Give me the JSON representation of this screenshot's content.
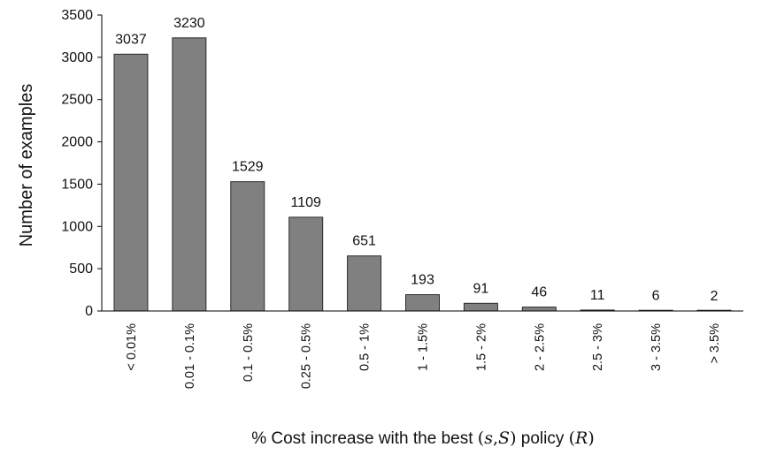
{
  "chart_data": {
    "type": "bar",
    "title": "",
    "ylabel": "Number of examples",
    "xlabel": {
      "prefix": "% Cost increase with the best ",
      "math_open": "(",
      "math_s": "s",
      "math_comma": ",",
      "math_S": "S",
      "math_close": ")",
      "middle": " policy ",
      "math_R_open": "(",
      "math_R": "R",
      "math_R_close": ")"
    },
    "ylim": [
      0,
      3500
    ],
    "yticks": [
      "0",
      "500",
      "1000",
      "1500",
      "2000",
      "2500",
      "3000",
      "3500"
    ],
    "categories": [
      "< 0.01%",
      "0.01 - 0.1%",
      "0.1 - 0.5%",
      "0.25 - 0.5%",
      "0.5 - 1%",
      "1 - 1.5%",
      "1.5 - 2%",
      "2 - 2.5%",
      "2.5 - 3%",
      "3 - 3.5%",
      "> 3.5%"
    ],
    "values": [
      3037,
      3230,
      1529,
      1109,
      651,
      193,
      91,
      46,
      11,
      6,
      2
    ],
    "data_labels": [
      "3037",
      "3230",
      "1529",
      "1109",
      "651",
      "193",
      "91",
      "46",
      "11",
      "6",
      "2"
    ],
    "grid": false,
    "bar_color": "#808080"
  }
}
